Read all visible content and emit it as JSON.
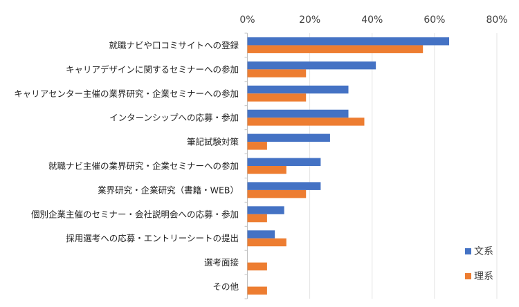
{
  "chart_data": {
    "type": "bar",
    "orientation": "horizontal",
    "title": "",
    "xlabel": "",
    "ylabel": "",
    "xlim": [
      0,
      80
    ],
    "x_ticks": [
      "0%",
      "20%",
      "40%",
      "60%",
      "80%"
    ],
    "x_tick_values": [
      0,
      20,
      40,
      60,
      80
    ],
    "grid": true,
    "legend_position": "bottom-right",
    "categories": [
      "就職ナビや口コミサイトへの登録",
      "キャリアデザインに関するセミナーへの参加",
      "キャリアセンター主催の業界研究・企業セミナーへの参加",
      "インターンシップへの応募・参加",
      "筆記試験対策",
      "就職ナビ主催の業界研究・企業セミナーへの参加",
      "業界研究・企業研究（書籍・WEB）",
      "個別企業主催のセミナー・会社説明会への応募・参加",
      "採用選考への応募・エントリーシートの提出",
      "選考面接",
      "その他"
    ],
    "series": [
      {
        "name": "文系",
        "color": "#4472C4",
        "values": [
          64.7,
          41.2,
          32.4,
          32.4,
          26.5,
          23.5,
          23.5,
          11.8,
          8.8,
          0,
          0
        ]
      },
      {
        "name": "理系",
        "color": "#ED7D31",
        "values": [
          56.3,
          18.8,
          18.8,
          37.5,
          6.3,
          12.5,
          18.8,
          6.3,
          12.5,
          6.3,
          6.3
        ]
      }
    ]
  }
}
